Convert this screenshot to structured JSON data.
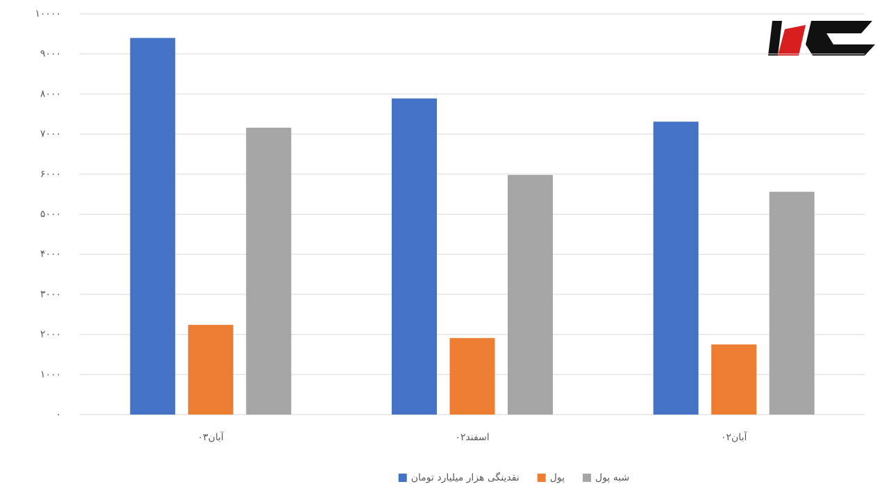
{
  "chart_data": {
    "type": "bar",
    "categories": [
      "آبان۰۳",
      "اسفند۰۲",
      "آبان۰۲"
    ],
    "series": [
      {
        "name": "نقدینگی هزار میلیارد تومان",
        "color": "#4472c4",
        "values": [
          9400,
          7890,
          7310
        ]
      },
      {
        "name": "پول",
        "color": "#ed7d31",
        "values": [
          2240,
          1910,
          1750
        ]
      },
      {
        "name": "شبه پول",
        "color": "#a5a5a5",
        "values": [
          7160,
          5980,
          5560
        ]
      }
    ],
    "ylim": [
      0,
      10000
    ],
    "yticks": [
      {
        "value": 0,
        "label": "۰"
      },
      {
        "value": 1000,
        "label": "۱۰۰۰"
      },
      {
        "value": 2000,
        "label": "۲۰۰۰"
      },
      {
        "value": 3000,
        "label": "۳۰۰۰"
      },
      {
        "value": 4000,
        "label": "۴۰۰۰"
      },
      {
        "value": 5000,
        "label": "۵۰۰۰"
      },
      {
        "value": 6000,
        "label": "۶۰۰۰"
      },
      {
        "value": 7000,
        "label": "۷۰۰۰"
      },
      {
        "value": 8000,
        "label": "۸۰۰۰"
      },
      {
        "value": 9000,
        "label": "۹۰۰۰"
      },
      {
        "value": 10000,
        "label": "۱۰۰۰۰"
      }
    ],
    "grid": true,
    "legend": "bottom"
  }
}
